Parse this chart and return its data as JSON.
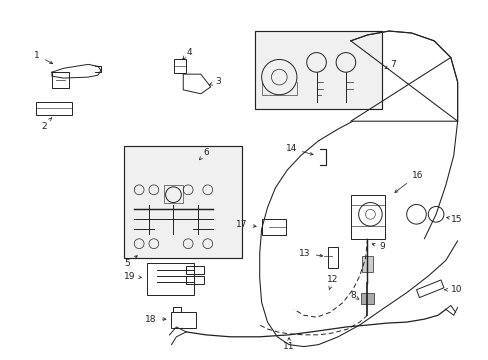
{
  "bg_color": "#ffffff",
  "lc": "#222222",
  "lw": 0.7,
  "fs": 6.5,
  "fig_w": 4.89,
  "fig_h": 3.6,
  "dpi": 100
}
